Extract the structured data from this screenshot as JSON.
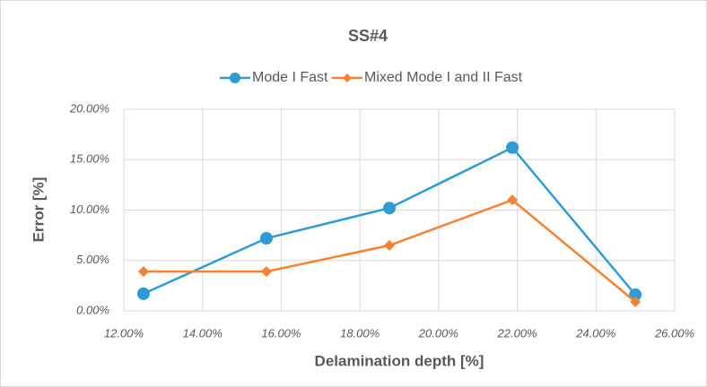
{
  "chart_data": {
    "type": "line",
    "title": "SS#4",
    "x_label": "Delamination depth [%]",
    "y_label": "Error [%]",
    "x": [
      12.5,
      15.625,
      18.75,
      21.875,
      25
    ],
    "series": [
      {
        "name": "Mode I Fast",
        "color": "#2e9bd6",
        "marker": "circle",
        "values": [
          1.7,
          7.2,
          10.2,
          16.2,
          1.6
        ]
      },
      {
        "name": "Mixed Mode I and II Fast",
        "color": "#f58232",
        "marker": "diamond",
        "values": [
          3.9,
          3.9,
          6.5,
          11.0,
          0.9
        ]
      }
    ],
    "xlim": [
      12,
      26
    ],
    "xticks": [
      {
        "value": 12,
        "label": "12.00%"
      },
      {
        "value": 14,
        "label": "14.00%"
      },
      {
        "value": 16,
        "label": "16.00%"
      },
      {
        "value": 18,
        "label": "18.00%"
      },
      {
        "value": 20,
        "label": "20.00%"
      },
      {
        "value": 22,
        "label": "22.00%"
      },
      {
        "value": 24,
        "label": "24.00%"
      },
      {
        "value": 26,
        "label": "26.00%"
      }
    ],
    "ylim": [
      0,
      20
    ],
    "yticks": [
      {
        "value": 0,
        "label": "0.00%"
      },
      {
        "value": 5,
        "label": "5.00%"
      },
      {
        "value": 10,
        "label": "10.00%"
      },
      {
        "value": 15,
        "label": "15.00%"
      },
      {
        "value": 20,
        "label": "20.00%"
      }
    ],
    "grid": true,
    "legend": "top"
  }
}
